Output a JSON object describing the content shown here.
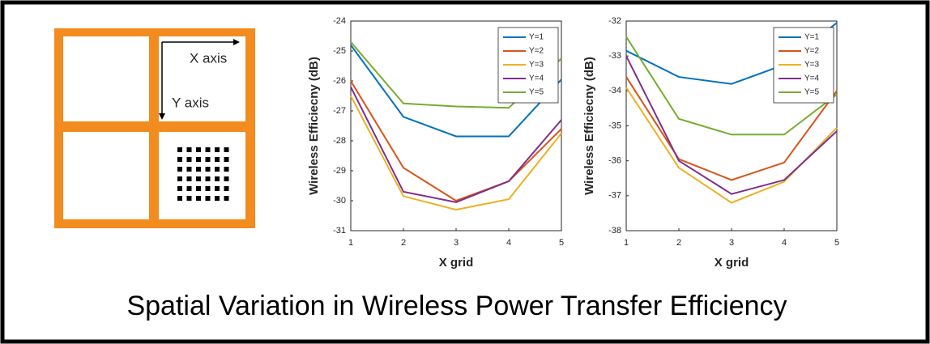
{
  "title": "Spatial Variation in Wireless Power Transfer Efficiency",
  "diagram": {
    "x_axis_label": "X axis",
    "y_axis_label": "Y axis"
  },
  "chart_data": [
    {
      "type": "line",
      "x": [
        1,
        2,
        3,
        4,
        5
      ],
      "xlabel": "X grid",
      "ylabel": "Wireless Efficiecny (dB)",
      "xlim": [
        1,
        5
      ],
      "xticks": [
        1,
        2,
        3,
        4,
        5
      ],
      "ylim": [
        -31,
        -24
      ],
      "yticks": [
        -31,
        -30,
        -29,
        -28,
        -27,
        -26,
        -25,
        -24
      ],
      "grid": false,
      "legend": "upper right",
      "series": [
        {
          "name": "Y=1",
          "color": "#0072bd",
          "values": [
            -24.8,
            -27.2,
            -27.85,
            -27.85,
            -25.95
          ]
        },
        {
          "name": "Y=2",
          "color": "#d95319",
          "values": [
            -26.0,
            -28.9,
            -30.0,
            -29.35,
            -27.6
          ]
        },
        {
          "name": "Y=3",
          "color": "#edb120",
          "values": [
            -26.5,
            -29.85,
            -30.3,
            -29.95,
            -27.75
          ]
        },
        {
          "name": "Y=4",
          "color": "#7e2f8e",
          "values": [
            -26.2,
            -29.7,
            -30.05,
            -29.35,
            -27.3
          ]
        },
        {
          "name": "Y=5",
          "color": "#77ac30",
          "values": [
            -24.7,
            -26.75,
            -26.85,
            -26.9,
            -25.25
          ]
        }
      ]
    },
    {
      "type": "line",
      "x": [
        1,
        2,
        3,
        4,
        5
      ],
      "xlabel": "X grid",
      "ylabel": "Wireless Efficiecny (dB)",
      "xlim": [
        1,
        5
      ],
      "xticks": [
        1,
        2,
        3,
        4,
        5
      ],
      "ylim": [
        -38,
        -32
      ],
      "yticks": [
        -38,
        -37,
        -36,
        -35,
        -34,
        -33,
        -32
      ],
      "grid": false,
      "legend": "upper right",
      "series": [
        {
          "name": "Y=1",
          "color": "#0072bd",
          "values": [
            -32.85,
            -33.6,
            -33.8,
            -33.25,
            -32.05
          ]
        },
        {
          "name": "Y=2",
          "color": "#d95319",
          "values": [
            -33.6,
            -35.95,
            -36.55,
            -36.05,
            -34.0
          ]
        },
        {
          "name": "Y=3",
          "color": "#edb120",
          "values": [
            -33.9,
            -36.2,
            -37.2,
            -36.6,
            -35.05
          ]
        },
        {
          "name": "Y=4",
          "color": "#7e2f8e",
          "values": [
            -33.0,
            -36.0,
            -36.95,
            -36.55,
            -35.15
          ]
        },
        {
          "name": "Y=5",
          "color": "#77ac30",
          "values": [
            -32.45,
            -34.8,
            -35.25,
            -35.25,
            -34.1
          ]
        }
      ]
    }
  ]
}
